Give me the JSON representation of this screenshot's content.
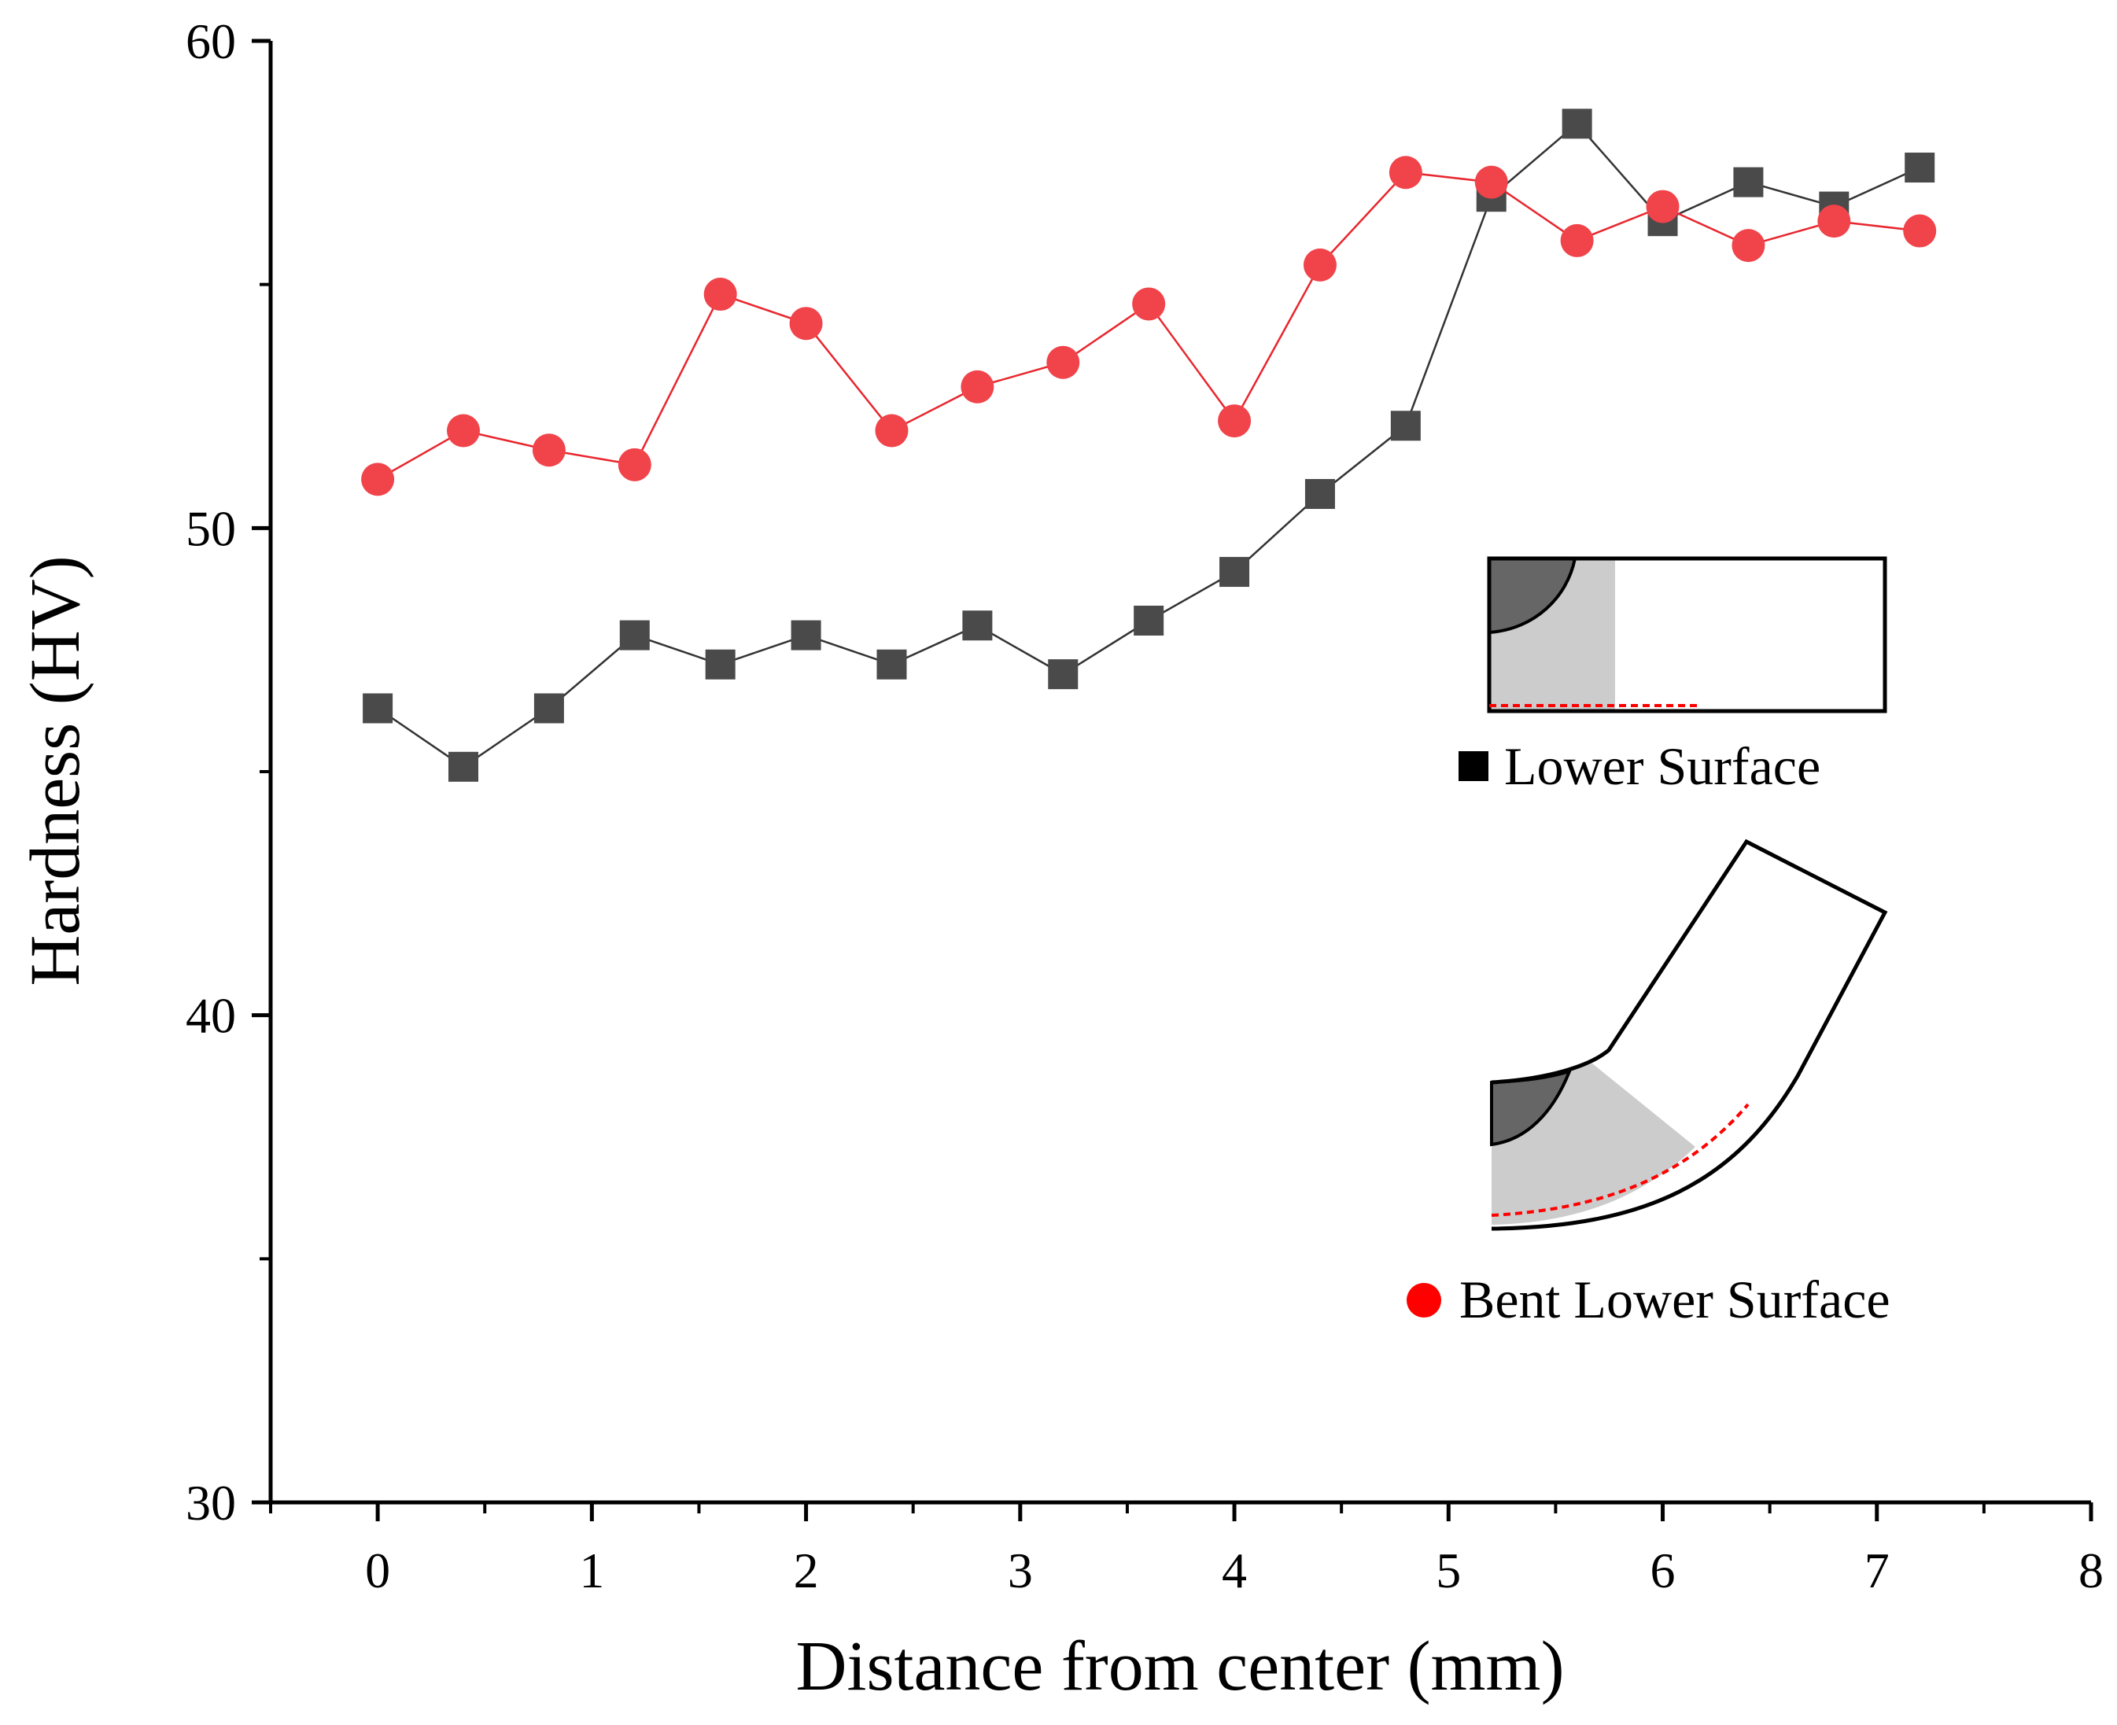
{
  "chart_data": {
    "type": "line",
    "xlabel": "Distance from center (mm)",
    "ylabel": "Hardness (HV)",
    "xlim": [
      -0.5,
      8
    ],
    "ylim": [
      30,
      60
    ],
    "x_ticks": [
      0,
      1,
      2,
      3,
      4,
      5,
      6,
      7,
      8
    ],
    "x_tick_labels": [
      "0",
      "1",
      "2",
      "3",
      "4",
      "5",
      "6",
      "7",
      "8"
    ],
    "y_ticks": [
      30,
      40,
      50,
      60
    ],
    "y_tick_labels": [
      "30",
      "40",
      "50",
      "60"
    ],
    "grid": false,
    "series": [
      {
        "name": "Lower Surface",
        "marker": "square",
        "color": "#4a4a4a",
        "line_color": "#333333",
        "x": [
          0,
          0.4,
          0.8,
          1.2,
          1.6,
          2.0,
          2.4,
          2.8,
          3.2,
          3.6,
          4.0,
          4.4,
          4.8,
          5.2,
          5.6,
          6.0,
          6.4,
          6.8,
          7.2
        ],
        "y": [
          46.3,
          45.1,
          46.3,
          47.8,
          47.2,
          47.8,
          47.2,
          48.0,
          47.0,
          48.1,
          49.1,
          50.7,
          52.1,
          56.8,
          58.3,
          56.3,
          57.1,
          56.6,
          57.4
        ]
      },
      {
        "name": "Bent Lower Surface",
        "marker": "circle",
        "color": "#f0434a",
        "line_color": "#e8262e",
        "x": [
          0,
          0.4,
          0.8,
          1.2,
          1.6,
          2.0,
          2.4,
          2.8,
          3.2,
          3.6,
          4.0,
          4.4,
          4.8,
          5.2,
          5.6,
          6.0,
          6.4,
          6.8,
          7.2
        ],
        "y": [
          51.0,
          52.0,
          51.6,
          51.3,
          54.8,
          54.2,
          52.0,
          52.9,
          53.4,
          54.6,
          52.2,
          55.4,
          57.3,
          57.1,
          55.9,
          56.6,
          55.8,
          56.3,
          56.1
        ]
      }
    ],
    "legend_entries": [
      {
        "label": "Lower Surface",
        "marker": "square",
        "color": "#000000"
      },
      {
        "label": "Bent Lower Surface",
        "marker": "circle",
        "color": "#ff0000"
      }
    ]
  }
}
